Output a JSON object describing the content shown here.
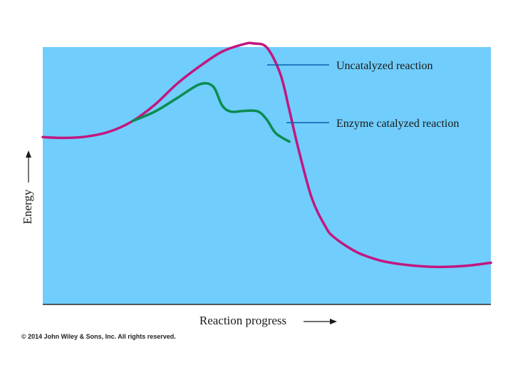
{
  "chart_data": {
    "type": "line",
    "title": "",
    "xlabel": "Reaction progress",
    "ylabel": "Energy",
    "x_axis_arrow": "right-arrow-icon",
    "y_axis_arrow": "up-arrow-icon",
    "xlim": [
      0,
      100
    ],
    "ylim": [
      0,
      100
    ],
    "grid": false,
    "plot_background": "#70cdfc",
    "series": [
      {
        "name": "Uncatalyzed reaction",
        "color": "#c2177f",
        "x": [
          0,
          5,
          10,
          15,
          20,
          25,
          30,
          35,
          40,
          45,
          47,
          50,
          53,
          55,
          57,
          60,
          63,
          65,
          70,
          75,
          80,
          85,
          90,
          95,
          100
        ],
        "y": [
          65,
          64.7,
          65.3,
          67.2,
          71.2,
          77.6,
          85.8,
          92.5,
          98.2,
          101.2,
          101.4,
          99.8,
          89.6,
          75.7,
          60.8,
          41.5,
          30.5,
          26.1,
          20.4,
          17.2,
          15.6,
          14.8,
          14.6,
          15.1,
          16.2
        ]
      },
      {
        "name": "Enzyme catalyzed reaction",
        "color": "#0b8c4f",
        "x": [
          20,
          25,
          30,
          35,
          38,
          40,
          42,
          45,
          48,
          50,
          52,
          55
        ],
        "y": [
          71.2,
          74.9,
          80.2,
          85.5,
          84.7,
          77.4,
          74.9,
          75.2,
          75.0,
          71.8,
          66.5,
          63.3
        ]
      }
    ],
    "annotations": [
      {
        "text": "Uncatalyzed reaction",
        "series": 0
      },
      {
        "text": "Enzyme catalyzed reaction",
        "series": 1
      }
    ],
    "annotation_line_color": "#0a5fb0"
  },
  "copyright": "© 2014 John Wiley & Sons, Inc. All rights reserved."
}
